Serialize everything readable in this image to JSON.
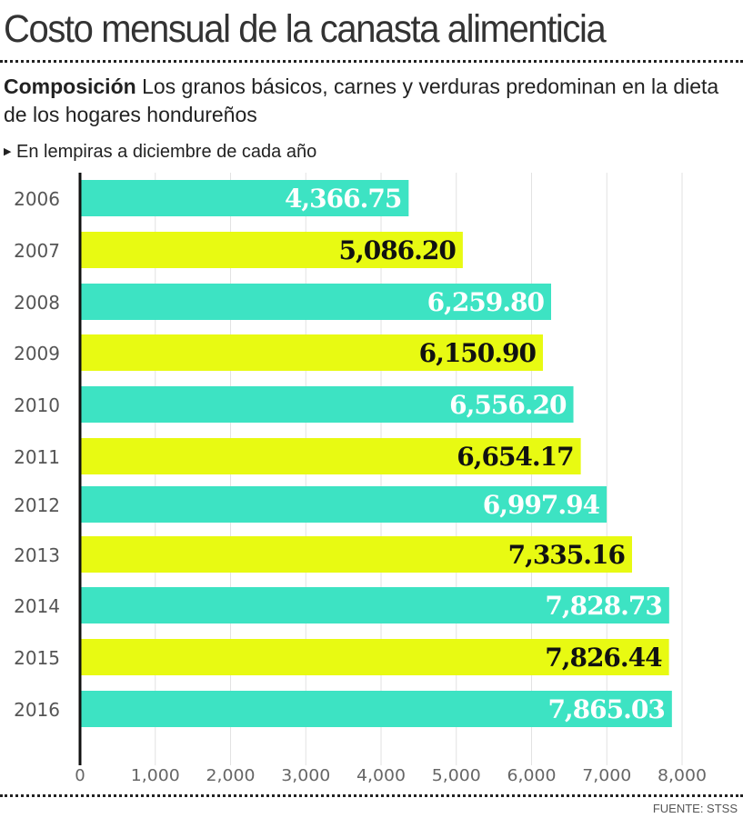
{
  "title": "Costo mensual de la canasta alimenticia",
  "subtitle_bold": "Composición",
  "subtitle": "Los granos básicos, carnes y verduras predominan en la dieta de los hogares hondureños",
  "unit_note": "En lempiras a diciembre de cada año",
  "source": "FUENTE: STSS",
  "colors": {
    "teal": "#3de3c3",
    "yellow": "#e8fa12"
  },
  "chart_data": {
    "type": "bar",
    "orientation": "horizontal",
    "title": "Costo mensual de la canasta alimenticia",
    "xlabel": "En lempiras a diciembre de cada año",
    "categories": [
      "2006",
      "2007",
      "2008",
      "2009",
      "2010",
      "2011",
      "2012",
      "2013",
      "2014",
      "2015",
      "2016"
    ],
    "values": [
      4366.75,
      5086.2,
      6259.8,
      6150.9,
      6556.2,
      6654.17,
      6997.94,
      7335.16,
      7828.73,
      7826.44,
      7865.03
    ],
    "labels": [
      "4,366.75",
      "5,086.20",
      "6,259.80",
      "6,150.90",
      "6,556.20",
      "6,654.17",
      "6,997.94",
      "7,335.16",
      "7,828.73",
      "7,826.44",
      "7,865.03"
    ],
    "xlim": [
      0,
      8000
    ],
    "xticks": [
      0,
      1000,
      2000,
      3000,
      4000,
      5000,
      6000,
      7000,
      8000
    ],
    "xtick_labels": [
      "0",
      "1,000",
      "2,000",
      "3,000",
      "4,000",
      "5,000",
      "6,000",
      "7,000",
      "8,000"
    ],
    "grid": true
  }
}
